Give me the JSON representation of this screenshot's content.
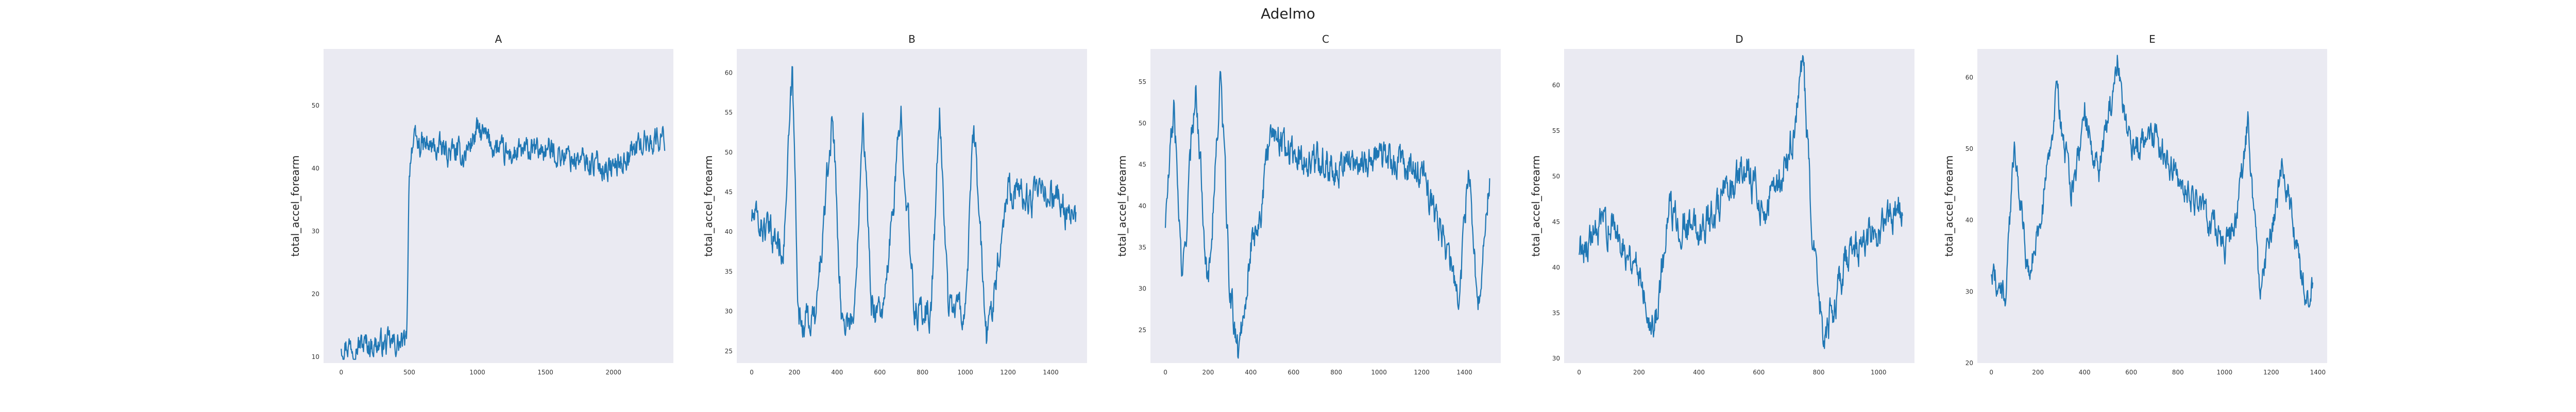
{
  "figure": {
    "title": "Adelmo"
  },
  "chart_data": [
    {
      "type": "line",
      "title": "A",
      "ylabel": "total_accel_forearm",
      "xlabel": "",
      "xlim": [
        -130,
        2440
      ],
      "ylim": [
        9,
        59
      ],
      "xticks": [
        0,
        500,
        1000,
        1500,
        2000
      ],
      "yticks": [
        10,
        20,
        30,
        40,
        50
      ],
      "color": "#1f77b4",
      "grid": false,
      "legend": "none",
      "series": [
        {
          "x": [
            0,
            2380
          ],
          "y_keypoints": [
            [
              0,
              12
            ],
            [
              480,
              12
            ],
            [
              500,
              40
            ],
            [
              520,
              44
            ],
            [
              900,
              42
            ],
            [
              1000,
              46
            ],
            [
              1200,
              42
            ],
            [
              1500,
              43
            ],
            [
              1800,
              41
            ],
            [
              2000,
              40
            ],
            [
              2200,
              44
            ],
            [
              2380,
              45
            ]
          ]
        }
      ]
    },
    {
      "type": "line",
      "title": "B",
      "ylabel": "total_accel_forearm",
      "xlabel": "",
      "xlim": [
        -70,
        1570
      ],
      "ylim": [
        23.5,
        63
      ],
      "xticks": [
        0,
        200,
        400,
        600,
        800,
        1000,
        1200,
        1400
      ],
      "yticks": [
        25,
        30,
        35,
        40,
        45,
        50,
        55,
        60
      ],
      "color": "#1f77b4",
      "grid": false,
      "legend": "none",
      "series": [
        {
          "x": [
            0,
            1520
          ],
          "y_keypoints": [
            [
              0,
              42
            ],
            [
              150,
              38
            ],
            [
              190,
              60
            ],
            [
              220,
              29
            ],
            [
              300,
              29
            ],
            [
              380,
              55
            ],
            [
              420,
              29
            ],
            [
              480,
              29
            ],
            [
              520,
              56
            ],
            [
              560,
              31
            ],
            [
              620,
              30
            ],
            [
              700,
              55
            ],
            [
              760,
              30
            ],
            [
              840,
              30
            ],
            [
              880,
              55
            ],
            [
              920,
              31
            ],
            [
              1000,
              30
            ],
            [
              1040,
              53
            ],
            [
              1100,
              26
            ],
            [
              1200,
              46
            ],
            [
              1300,
              44
            ],
            [
              1400,
              45
            ],
            [
              1520,
              41
            ]
          ]
        }
      ]
    },
    {
      "type": "line",
      "title": "C",
      "ylabel": "total_accel_forearm",
      "xlabel": "",
      "xlim": [
        -70,
        1570
      ],
      "ylim": [
        21,
        59
      ],
      "xticks": [
        0,
        200,
        400,
        600,
        800,
        1000,
        1200,
        1400
      ],
      "yticks": [
        25,
        30,
        35,
        40,
        45,
        50,
        55
      ],
      "color": "#1f77b4",
      "grid": false,
      "legend": "none",
      "series": [
        {
          "x": [
            0,
            1520
          ],
          "y_keypoints": [
            [
              0,
              38
            ],
            [
              40,
              52
            ],
            [
              80,
              30
            ],
            [
              140,
              55
            ],
            [
              200,
              30
            ],
            [
              260,
              56
            ],
            [
              300,
              30
            ],
            [
              340,
              22
            ],
            [
              400,
              35
            ],
            [
              450,
              40
            ],
            [
              500,
              50
            ],
            [
              600,
              46
            ],
            [
              800,
              45
            ],
            [
              1000,
              46
            ],
            [
              1200,
              44
            ],
            [
              1300,
              36
            ],
            [
              1380,
              29
            ],
            [
              1420,
              46
            ],
            [
              1460,
              27
            ],
            [
              1520,
              44
            ]
          ]
        }
      ]
    },
    {
      "type": "line",
      "title": "D",
      "ylabel": "total_accel_forearm",
      "xlabel": "",
      "xlim": [
        -50,
        1120
      ],
      "ylim": [
        29.5,
        64
      ],
      "xticks": [
        0,
        200,
        400,
        600,
        800,
        1000
      ],
      "yticks": [
        30,
        35,
        40,
        45,
        50,
        55,
        60
      ],
      "color": "#1f77b4",
      "grid": false,
      "legend": "none",
      "series": [
        {
          "x": [
            0,
            1080
          ],
          "y_keypoints": [
            [
              0,
              42
            ],
            [
              100,
              45
            ],
            [
              200,
              40
            ],
            [
              250,
              33
            ],
            [
              300,
              46
            ],
            [
              400,
              44
            ],
            [
              500,
              48
            ],
            [
              560,
              51
            ],
            [
              620,
              46
            ],
            [
              700,
              52
            ],
            [
              750,
              62
            ],
            [
              780,
              42
            ],
            [
              820,
              32
            ],
            [
              900,
              42
            ],
            [
              1000,
              44
            ],
            [
              1080,
              47
            ]
          ]
        }
      ]
    },
    {
      "type": "line",
      "title": "E",
      "ylabel": "total_accel_forearm",
      "xlabel": "",
      "xlim": [
        -60,
        1440
      ],
      "ylim": [
        20,
        64
      ],
      "xticks": [
        0,
        200,
        400,
        600,
        800,
        1000,
        1200,
        1400
      ],
      "yticks": [
        20,
        30,
        40,
        50,
        60
      ],
      "color": "#1f77b4",
      "grid": false,
      "legend": "none",
      "series": [
        {
          "x": [
            0,
            1380
          ],
          "y_keypoints": [
            [
              0,
              33
            ],
            [
              60,
              29
            ],
            [
              100,
              51
            ],
            [
              160,
              32
            ],
            [
              220,
              42
            ],
            [
              280,
              58
            ],
            [
              340,
              44
            ],
            [
              400,
              55
            ],
            [
              460,
              46
            ],
            [
              540,
              62
            ],
            [
              600,
              50
            ],
            [
              700,
              52
            ],
            [
              800,
              46
            ],
            [
              900,
              42
            ],
            [
              1000,
              36
            ],
            [
              1050,
              40
            ],
            [
              1100,
              54
            ],
            [
              1150,
              30
            ],
            [
              1200,
              38
            ],
            [
              1250,
              48
            ],
            [
              1300,
              38
            ],
            [
              1350,
              29
            ],
            [
              1380,
              32
            ]
          ]
        }
      ]
    }
  ]
}
